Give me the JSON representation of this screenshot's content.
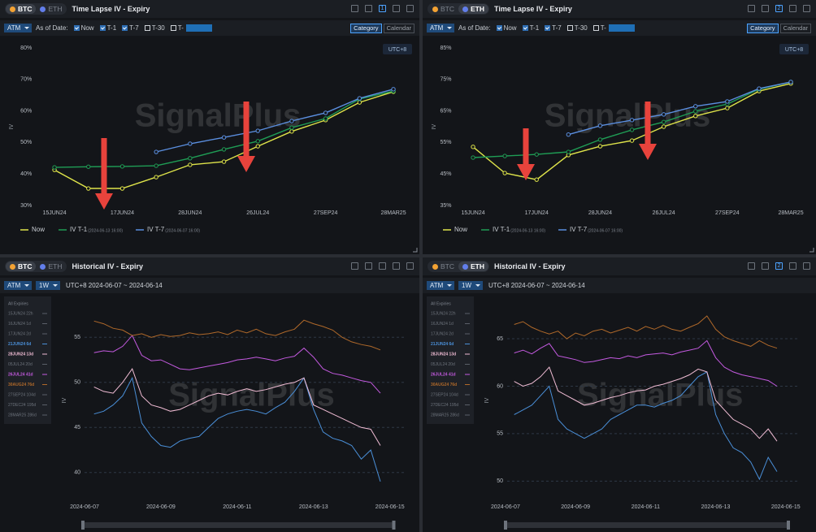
{
  "panels": [
    {
      "assets": [
        "BTC",
        "ETH"
      ],
      "active_asset": 0,
      "title": "Time Lapse IV - Expiry",
      "badge": "1",
      "measure": "ATM",
      "as_of_label": "As of Date:",
      "options": [
        {
          "label": "Now",
          "checked": true
        },
        {
          "label": "T-1",
          "checked": true
        },
        {
          "label": "T-7",
          "checked": true
        },
        {
          "label": "T-30",
          "checked": false
        },
        {
          "label": "T-",
          "checked": false
        }
      ],
      "views": [
        "Category",
        "Calendar"
      ],
      "active_view": 0,
      "timezone": "UTC+8",
      "watermark": "SignalPlus"
    },
    {
      "assets": [
        "BTC",
        "ETH"
      ],
      "active_asset": 1,
      "title": "Time Lapse IV - Expiry",
      "badge": "2",
      "measure": "ATM",
      "as_of_label": "As of Date:",
      "options": [
        {
          "label": "Now",
          "checked": true
        },
        {
          "label": "T-1",
          "checked": true
        },
        {
          "label": "T-7",
          "checked": true
        },
        {
          "label": "T-30",
          "checked": false
        },
        {
          "label": "T-",
          "checked": false
        }
      ],
      "views": [
        "Category",
        "Calendar"
      ],
      "active_view": 0,
      "timezone": "UTC+8",
      "watermark": "SignalPlus"
    },
    {
      "assets": [
        "BTC",
        "ETH"
      ],
      "active_asset": 0,
      "title": "Historical IV - Expiry",
      "measure": "ATM",
      "period": "1W",
      "range": "UTC+8 2024-06-07 ~ 2024-06-14",
      "watermark": "SignalPlus"
    },
    {
      "assets": [
        "BTC",
        "ETH"
      ],
      "active_asset": 1,
      "title": "Historical IV - Expiry",
      "badge": "2",
      "measure": "ATM",
      "period": "1W",
      "range": "UTC+8 2024-06-07 ~ 2024-06-14",
      "watermark": "SignalPlus"
    }
  ],
  "chart_data": [
    {
      "type": "category_line",
      "y_label": "IV",
      "markers": true,
      "grid": false,
      "categories": [
        "15JUN24",
        null,
        "17JUN24",
        null,
        "28JUN24",
        null,
        "26JUL24",
        null,
        "27SEP24",
        null,
        "28MAR25"
      ],
      "ylim": [
        30,
        80
      ],
      "yticks": [
        {
          "value": 30,
          "label": "30%"
        },
        {
          "value": 40,
          "label": "40%"
        },
        {
          "value": 50,
          "label": "50%"
        },
        {
          "value": 60,
          "label": "60%"
        },
        {
          "value": 70,
          "label": "70%"
        },
        {
          "value": 80,
          "label": "80%"
        }
      ],
      "series": [
        {
          "name": "Now",
          "color": "#dfe44a",
          "values": [
            41.3,
            35.4,
            35.4,
            39.0,
            42.9,
            43.9,
            48.8,
            53.5,
            57.1,
            62.7,
            66.1
          ]
        },
        {
          "name": "IV T-1",
          "timestamp": "(2024-06-13 16:00)",
          "color": "#1f9d55",
          "values": [
            42.1,
            42.3,
            42.4,
            42.6,
            45.0,
            47.8,
            50.4,
            54.7,
            57.6,
            63.8,
            66.3
          ]
        },
        {
          "name": "IV T-7",
          "timestamp": "(2024-06-07 16:00)",
          "color": "#5b8fe0",
          "values": [
            null,
            null,
            null,
            47.0,
            49.6,
            51.6,
            53.7,
            56.8,
            59.4,
            64.0,
            66.9
          ]
        }
      ]
    },
    {
      "type": "category_line",
      "y_label": "IV",
      "markers": true,
      "grid": false,
      "categories": [
        "15JUN24",
        null,
        "17JUN24",
        null,
        "28JUN24",
        null,
        "26JUL24",
        null,
        "27SEP24",
        null,
        "28MAR25"
      ],
      "ylim": [
        35,
        85
      ],
      "yticks": [
        {
          "value": 35,
          "label": "35%"
        },
        {
          "value": 45,
          "label": "45%"
        },
        {
          "value": 55,
          "label": "55%"
        },
        {
          "value": 65,
          "label": "65%"
        },
        {
          "value": 75,
          "label": "75%"
        },
        {
          "value": 85,
          "label": "85%"
        }
      ],
      "series": [
        {
          "name": "Now",
          "color": "#dfe44a",
          "values": [
            53.6,
            45.3,
            43.2,
            51.0,
            53.8,
            55.6,
            60.0,
            63.4,
            65.9,
            71.3,
            73.7
          ]
        },
        {
          "name": "IV T-1",
          "timestamp": "(2024-06-13 16:00)",
          "color": "#1f9d55",
          "values": [
            50.2,
            50.7,
            51.2,
            52.0,
            55.9,
            59.0,
            61.5,
            64.9,
            67.2,
            71.9,
            74.2
          ]
        },
        {
          "name": "IV T-7",
          "timestamp": "(2024-06-07 16:00)",
          "color": "#5b8fe0",
          "values": [
            null,
            null,
            null,
            57.5,
            60.3,
            62.1,
            63.9,
            66.5,
            68.0,
            72.1,
            74.2
          ]
        }
      ]
    },
    {
      "type": "time_line",
      "y_label": "IV",
      "markers": false,
      "grid": true,
      "legend_title": "All Expiries",
      "x": [
        0.25,
        0.5,
        0.75,
        1,
        1.25,
        1.5,
        1.75,
        2,
        2.25,
        2.5,
        2.75,
        3,
        3.25,
        3.5,
        3.75,
        4,
        4.25,
        4.5,
        4.75,
        5,
        5.25,
        5.5,
        5.75,
        6,
        6.25,
        6.5,
        6.75,
        7,
        7.25,
        7.5,
        7.75
      ],
      "xlim": [
        -0.5,
        8.4
      ],
      "xticks": [
        {
          "value": 0,
          "label": "2024-06-07"
        },
        {
          "value": 2,
          "label": "2024-06-09"
        },
        {
          "value": 4,
          "label": "2024-06-11"
        },
        {
          "value": 6,
          "label": "2024-06-13"
        },
        {
          "value": 8,
          "label": "2024-06-15"
        }
      ],
      "ylim": [
        38,
        58
      ],
      "yticks": [
        40,
        45,
        50,
        55
      ],
      "series": [
        {
          "name": "15JUN24 22h",
          "color": "#5a5f68",
          "visible": false
        },
        {
          "name": "16JUN24 1d",
          "color": "#5a5f68",
          "visible": false
        },
        {
          "name": "17JUN24 2d",
          "color": "#5a5f68",
          "visible": false
        },
        {
          "name": "21JUN24 6d",
          "color": "#4a8fd8",
          "visible": true,
          "values": [
            46.5,
            46.8,
            47.5,
            48.5,
            50.5,
            45.5,
            44.0,
            43.0,
            42.8,
            43.5,
            43.8,
            44.0,
            45.0,
            46.0,
            46.5,
            46.8,
            47.0,
            46.8,
            46.5,
            47.2,
            47.8,
            49.0,
            50.5,
            47.0,
            44.5,
            43.8,
            43.5,
            43.0,
            41.5,
            42.5,
            39.0
          ]
        },
        {
          "name": "28JUN24 13d",
          "color": "#f0bcd4",
          "visible": true,
          "values": [
            49.5,
            49.0,
            48.8,
            50.0,
            51.5,
            48.5,
            47.5,
            47.2,
            46.8,
            47.0,
            47.5,
            48.0,
            48.5,
            48.8,
            48.6,
            49.0,
            49.3,
            49.0,
            49.2,
            49.5,
            49.8,
            50.0,
            50.5,
            47.5,
            47.0,
            46.5,
            46.0,
            45.5,
            45.0,
            44.8,
            43.0
          ]
        },
        {
          "name": "05JUL24 20d",
          "color": "#5a5f68",
          "visible": false
        },
        {
          "name": "26JUL24 41d",
          "color": "#c45ae0",
          "visible": true,
          "values": [
            53.3,
            53.5,
            53.4,
            54.0,
            55.2,
            53.0,
            52.4,
            52.5,
            52.0,
            51.5,
            51.4,
            51.6,
            51.8,
            52.0,
            52.2,
            52.5,
            52.6,
            52.8,
            52.6,
            52.4,
            52.7,
            52.9,
            53.8,
            52.8,
            51.5,
            51.0,
            50.8,
            50.5,
            50.2,
            50.0,
            48.8
          ]
        },
        {
          "name": "30AUG24 76d",
          "color": "#b0692a",
          "visible": true,
          "values": [
            56.8,
            56.5,
            56.0,
            55.8,
            55.2,
            55.4,
            55.0,
            55.3,
            55.1,
            55.2,
            55.5,
            55.3,
            55.4,
            55.6,
            55.3,
            55.8,
            55.5,
            55.9,
            55.4,
            55.2,
            55.6,
            55.9,
            56.9,
            56.5,
            56.2,
            55.8,
            55.0,
            54.5,
            54.2,
            54.0,
            53.6
          ]
        },
        {
          "name": "27SEP24 104d",
          "color": "#5a5f68",
          "visible": false
        },
        {
          "name": "27DEC24 195d",
          "color": "#5a5f68",
          "visible": false
        },
        {
          "name": "28MAR25 286d",
          "color": "#5a5f68",
          "visible": false
        }
      ]
    },
    {
      "type": "time_line",
      "y_label": "IV",
      "markers": false,
      "grid": true,
      "legend_title": "All Expiries",
      "x": [
        0.25,
        0.5,
        0.75,
        1,
        1.25,
        1.5,
        1.75,
        2,
        2.25,
        2.5,
        2.75,
        3,
        3.25,
        3.5,
        3.75,
        4,
        4.25,
        4.5,
        4.75,
        5,
        5.25,
        5.5,
        5.75,
        6,
        6.25,
        6.5,
        6.75,
        7,
        7.25,
        7.5,
        7.75
      ],
      "xlim": [
        -0.5,
        8.4
      ],
      "xticks": [
        {
          "value": 0,
          "label": "2024-06-07"
        },
        {
          "value": 2,
          "label": "2024-06-09"
        },
        {
          "value": 4,
          "label": "2024-06-11"
        },
        {
          "value": 6,
          "label": "2024-06-13"
        },
        {
          "value": 8,
          "label": "2024-06-15"
        }
      ],
      "ylim": [
        49,
        68
      ],
      "yticks": [
        50,
        55,
        60,
        65
      ],
      "series": [
        {
          "name": "15JUN24 22h",
          "color": "#5a5f68",
          "visible": false
        },
        {
          "name": "16JUN24 1d",
          "color": "#5a5f68",
          "visible": false
        },
        {
          "name": "17JUN24 2d",
          "color": "#5a5f68",
          "visible": false
        },
        {
          "name": "21JUN24 6d",
          "color": "#4a8fd8",
          "visible": true,
          "values": [
            57.0,
            57.5,
            58.0,
            59.0,
            60.0,
            56.5,
            55.5,
            55.0,
            54.5,
            55.0,
            55.5,
            56.5,
            57.0,
            57.5,
            58.0,
            58.0,
            57.8,
            58.2,
            58.5,
            59.0,
            60.0,
            61.0,
            61.5,
            57.0,
            55.0,
            53.5,
            53.0,
            52.0,
            50.2,
            52.5,
            51.0
          ]
        },
        {
          "name": "28JUN24 13d",
          "color": "#f0bcd4",
          "visible": true,
          "values": [
            60.5,
            60.0,
            60.3,
            61.0,
            62.0,
            59.5,
            59.0,
            58.5,
            58.0,
            58.2,
            58.5,
            58.8,
            59.0,
            59.3,
            59.5,
            59.6,
            60.0,
            60.2,
            60.5,
            60.8,
            61.2,
            61.8,
            61.5,
            58.5,
            57.5,
            56.5,
            56.0,
            55.5,
            54.5,
            55.5,
            54.2
          ]
        },
        {
          "name": "05JUL24 20d",
          "color": "#5a5f68",
          "visible": false
        },
        {
          "name": "26JUL24 41d",
          "color": "#c45ae0",
          "visible": true,
          "values": [
            63.5,
            63.8,
            63.4,
            64.0,
            64.5,
            63.2,
            63.0,
            62.8,
            62.5,
            62.6,
            62.8,
            63.0,
            62.9,
            63.2,
            63.0,
            63.3,
            63.4,
            63.5,
            63.3,
            63.6,
            63.8,
            64.0,
            64.8,
            63.0,
            62.0,
            61.5,
            61.2,
            61.0,
            60.8,
            60.6,
            60.0
          ]
        },
        {
          "name": "30AUG24 76d",
          "color": "#b0692a",
          "visible": true,
          "values": [
            66.5,
            66.8,
            66.2,
            65.8,
            65.5,
            65.8,
            65.0,
            65.6,
            65.3,
            65.8,
            66.0,
            65.6,
            65.9,
            66.2,
            65.8,
            66.3,
            66.0,
            66.4,
            66.0,
            65.8,
            66.2,
            66.6,
            67.4,
            66.0,
            65.2,
            64.8,
            64.5,
            64.2,
            64.8,
            64.3,
            64.0
          ]
        },
        {
          "name": "27SEP24 104d",
          "color": "#5a5f68",
          "visible": false
        },
        {
          "name": "27DEC24 195d",
          "color": "#5a5f68",
          "visible": false
        },
        {
          "name": "28MAR25 286d",
          "color": "#5a5f68",
          "visible": false
        }
      ]
    }
  ]
}
